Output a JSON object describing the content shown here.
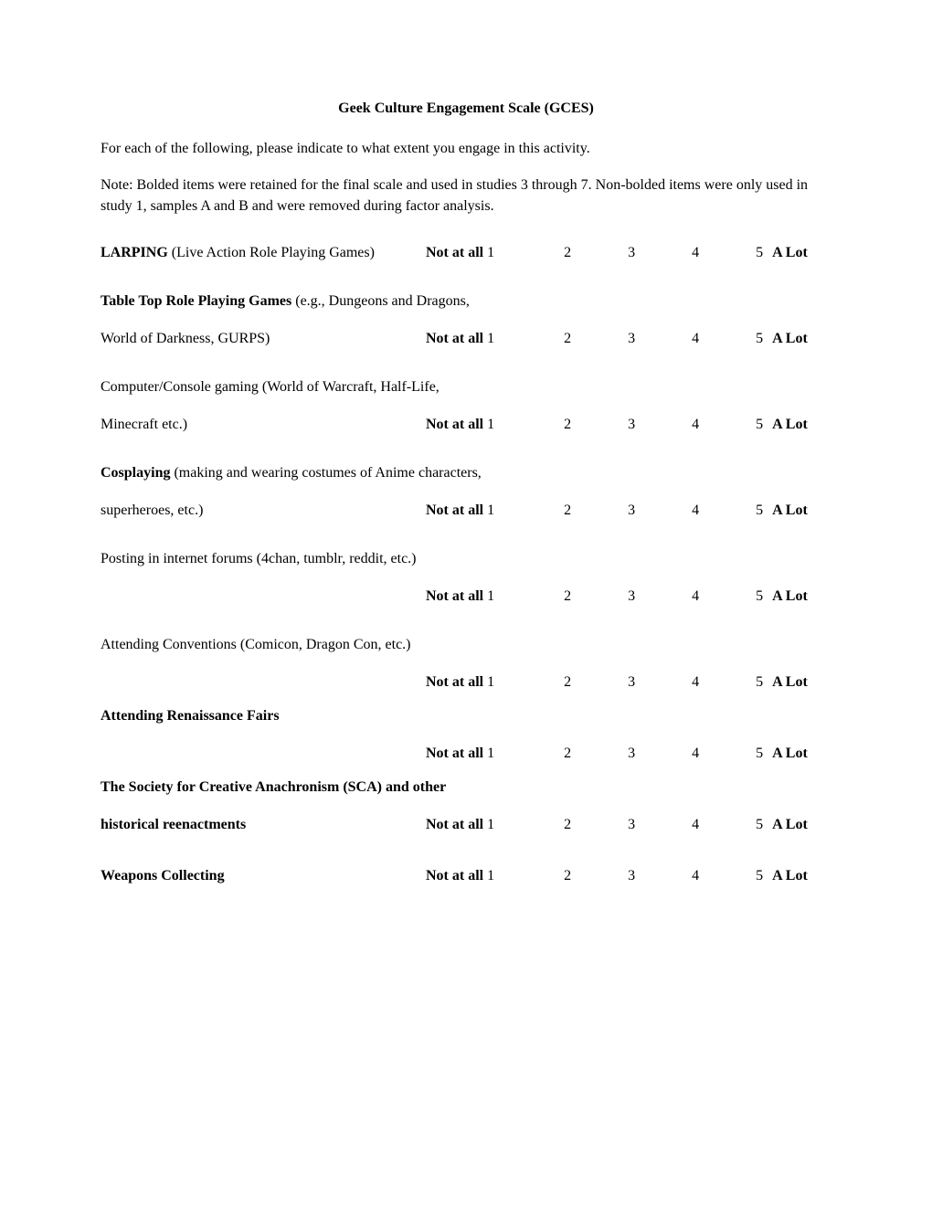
{
  "title": "Geek Culture Engagement Scale (GCES)",
  "intro": "For each of the following, please indicate to what extent you engage in this activity.",
  "note": "Note: Bolded items were retained for the final scale and used in studies 3 through 7. Non-bolded items were only used in study 1, samples A and B and were removed during factor analysis.",
  "scale": {
    "anchor_left": "Not at all",
    "n1": "1",
    "n2": "2",
    "n3": "3",
    "n4": "4",
    "n5": "5",
    "anchor_right": "A Lot"
  },
  "items": [
    {
      "label_line1_bold": "LARPING",
      "label_line1_rest": " (Live Action Role Playing Games)",
      "label_line2": "",
      "single_line": true,
      "tight": false
    },
    {
      "label_line1_bold": "Table Top Role Playing Games",
      "label_line1_rest": " (e.g., Dungeons and Dragons,",
      "label_line2": "World of Darkness, GURPS)",
      "single_line": false,
      "tight": false
    },
    {
      "label_line1_bold": "",
      "label_line1_rest": "Computer/Console gaming (World of Warcraft, Half-Life,",
      "label_line2": "Minecraft etc.)",
      "single_line": false,
      "tight": false
    },
    {
      "label_line1_bold": "Cosplaying",
      "label_line1_rest": " (making and wearing costumes of Anime characters,",
      "label_line2": " superheroes, etc.)",
      "single_line": false,
      "tight": false
    },
    {
      "label_line1_bold": "",
      "label_line1_rest": "Posting in internet forums (4chan, tumblr, reddit, etc.)",
      "label_line2": "",
      "single_line": false,
      "tight": false
    },
    {
      "label_line1_bold": "",
      "label_line1_rest": "Attending Conventions (Comicon, Dragon Con, etc.)",
      "label_line2": "",
      "single_line": false,
      "tight": true
    },
    {
      "label_line1_bold": "Attending Renaissance Fairs",
      "label_line1_rest": "",
      "label_line2": "",
      "single_line": false,
      "tight": true
    },
    {
      "label_line1_bold": "The Society for Creative Anachronism (SCA) and other",
      "label_line1_rest": "",
      "label_line2_bold": "historical reenactments",
      "label_line2": "",
      "single_line": false,
      "tight": false
    },
    {
      "label_line1_bold": "Weapons Collecting",
      "label_line1_rest": "",
      "label_line2": "",
      "single_line": true,
      "tight": false
    }
  ]
}
